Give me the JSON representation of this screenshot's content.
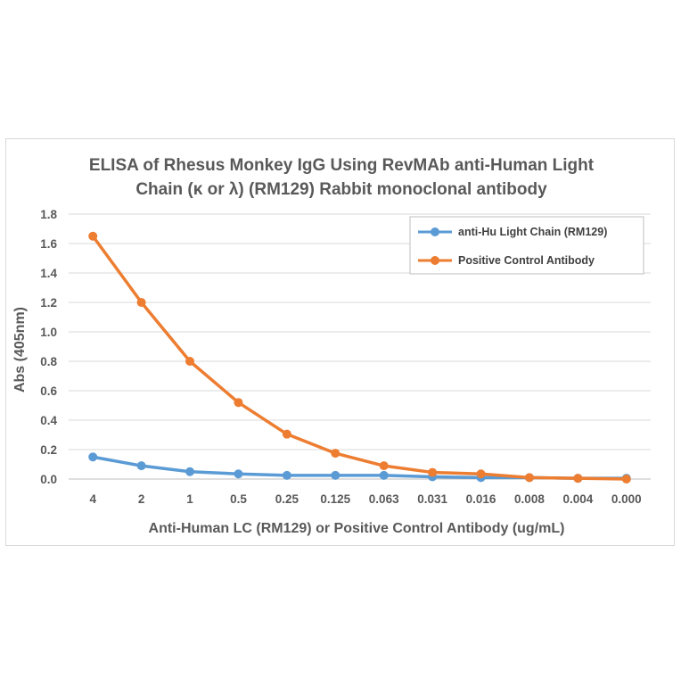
{
  "chart_data": {
    "type": "line",
    "title_line1": "ELISA of Rhesus Monkey IgG Using RevMAb anti-Human Light",
    "title_line2": "Chain (κ or λ) (RM129) Rabbit monoclonal antibody",
    "xlabel": "Anti-Human LC (RM129) or Positive Control Antibody (ug/mL)",
    "ylabel": "Abs (405nm)",
    "categories": [
      "4",
      "2",
      "1",
      "0.5",
      "0.25",
      "0.125",
      "0.063",
      "0.031",
      "0.016",
      "0.008",
      "0.004",
      "0.000"
    ],
    "yticks": [
      "0.0",
      "0.2",
      "0.4",
      "0.6",
      "0.8",
      "1.0",
      "1.2",
      "1.4",
      "1.6",
      "1.8"
    ],
    "ylim": [
      0,
      1.8
    ],
    "grid": true,
    "legend_position": "top-right",
    "series": [
      {
        "name": "anti-Hu Light Chain (RM129)",
        "color": "#5b9bd5",
        "values": [
          0.15,
          0.09,
          0.05,
          0.035,
          0.025,
          0.025,
          0.025,
          0.015,
          0.01,
          0.01,
          0.005,
          0.005
        ]
      },
      {
        "name": "Positive Control Antibody",
        "color": "#ed7d31",
        "values": [
          1.65,
          1.2,
          0.8,
          0.52,
          0.305,
          0.175,
          0.09,
          0.045,
          0.035,
          0.01,
          0.005,
          0.0
        ]
      }
    ]
  }
}
